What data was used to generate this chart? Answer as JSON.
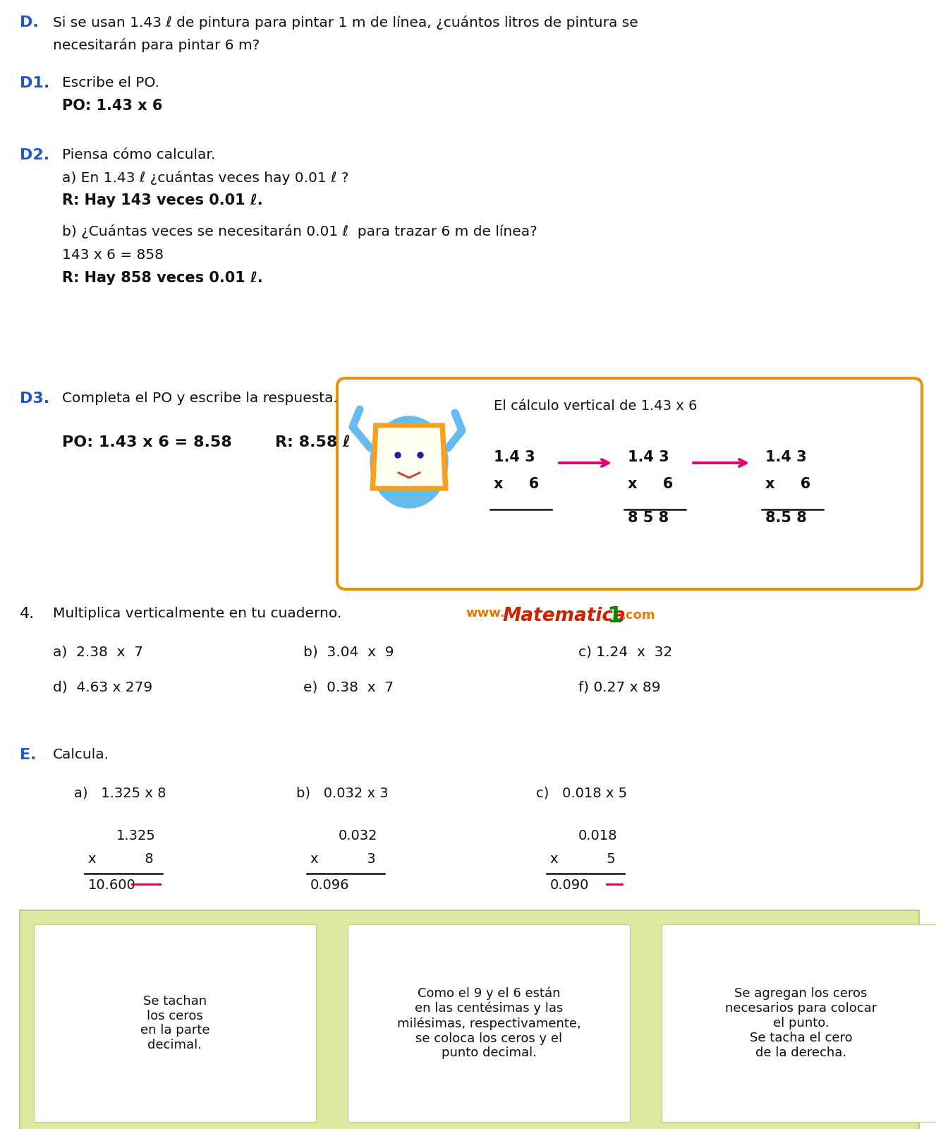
{
  "bg_color": "#ffffff",
  "blue_label": "#2255cc",
  "black": "#111111",
  "orange_box": "#e8940a",
  "red_arrow": "#dd0077",
  "green_1": "#008800",
  "orange_logo": "#e87800",
  "red_logo": "#cc2200",
  "note_outer_bg": "#dde8a0",
  "note_inner_bg": "#ffffff",
  "note_border": "#c0cc80",
  "section_D": {
    "text1": "Si se usan 1.43 ℓ de pintura para pintar 1 m de línea, ¿cuántos litros de pintura se",
    "text2": "necesitarán para pintar 6 m?"
  },
  "section_D1": {
    "line1": "Escribe el PO.",
    "line2": "PO: 1.43 x 6"
  },
  "section_D2": {
    "line1": "Piensa cómo calcular.",
    "line2": "a) En 1.43 ℓ ¿cuántas veces hay 0.01 ℓ ?",
    "line3": "R: Hay 143 veces 0.01 ℓ.",
    "line4": "b) ¿Cuántas veces se necesitarán 0.01 ℓ  para trazar 6 m de línea?",
    "line5": "143 x 6 = 858",
    "line6": "R: Hay 858 veces 0.01 ℓ."
  },
  "section_D3": {
    "line1": "Completa el PO y escribe la respuesta.",
    "line2a": "PO: 1.43 x 6 = 8.58",
    "line2b": "R: 8.58 ℓ",
    "box_title": "El cálculo vertical de 1.43 x 6"
  },
  "section_4": {
    "line1": "Multiplica verticalmente en tu cuaderno.",
    "row1": [
      "a)  2.38  x  7",
      "b)  3.04  x  9",
      "c) 1.24  x  32"
    ],
    "row2": [
      "d)  4.63 x 279",
      "e)  0.38  x  7",
      "f) 0.27 x 89"
    ]
  },
  "section_E": {
    "line1": "Calcula.",
    "cols": [
      {
        "label": "a)   1.325 x 8",
        "num": "1.325",
        "mult": "x           8",
        "result": "10.600",
        "strike": [
          2,
          2
        ]
      },
      {
        "label": "b)   0.032 x 3",
        "num": "0.032",
        "mult": "x           3",
        "result": "0.096",
        "strike": []
      },
      {
        "label": "c)   0.018 x 5",
        "num": "0.018",
        "mult": "x           5",
        "result": "0.090",
        "strike": [
          1,
          1
        ]
      }
    ],
    "note_a": "Se tachan\nlos ceros\nen la parte\ndecimal.",
    "note_b": "Como el 9 y el 6 están\nen las centésimas y las\nmilésimas, respectivamente,\nse coloca los ceros y el\npunto decimal.",
    "note_c": "Se agregan los ceros\nnecesarios para colocar\nel punto.\nSe tacha el cero\nde la derecha."
  }
}
